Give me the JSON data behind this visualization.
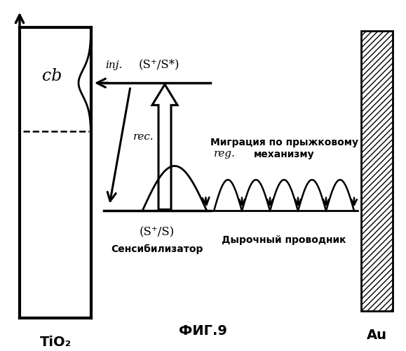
{
  "title": "ФИГ.9",
  "tio2_label": "TiO₂",
  "au_label": "Au",
  "cb_label": "cb",
  "inj_label": "inj.",
  "rec_label": "rec.",
  "reg_label": "reg.",
  "sp_s_star_label": "(S⁺/S*)",
  "sp_s_label": "(S⁺/S)",
  "sensitizer_label": "Сенсибилизатор",
  "hole_conductor_label": "Дырочный проводник",
  "migration_label": "Миграция по прыжковому\nмеханизму",
  "background": "#ffffff"
}
